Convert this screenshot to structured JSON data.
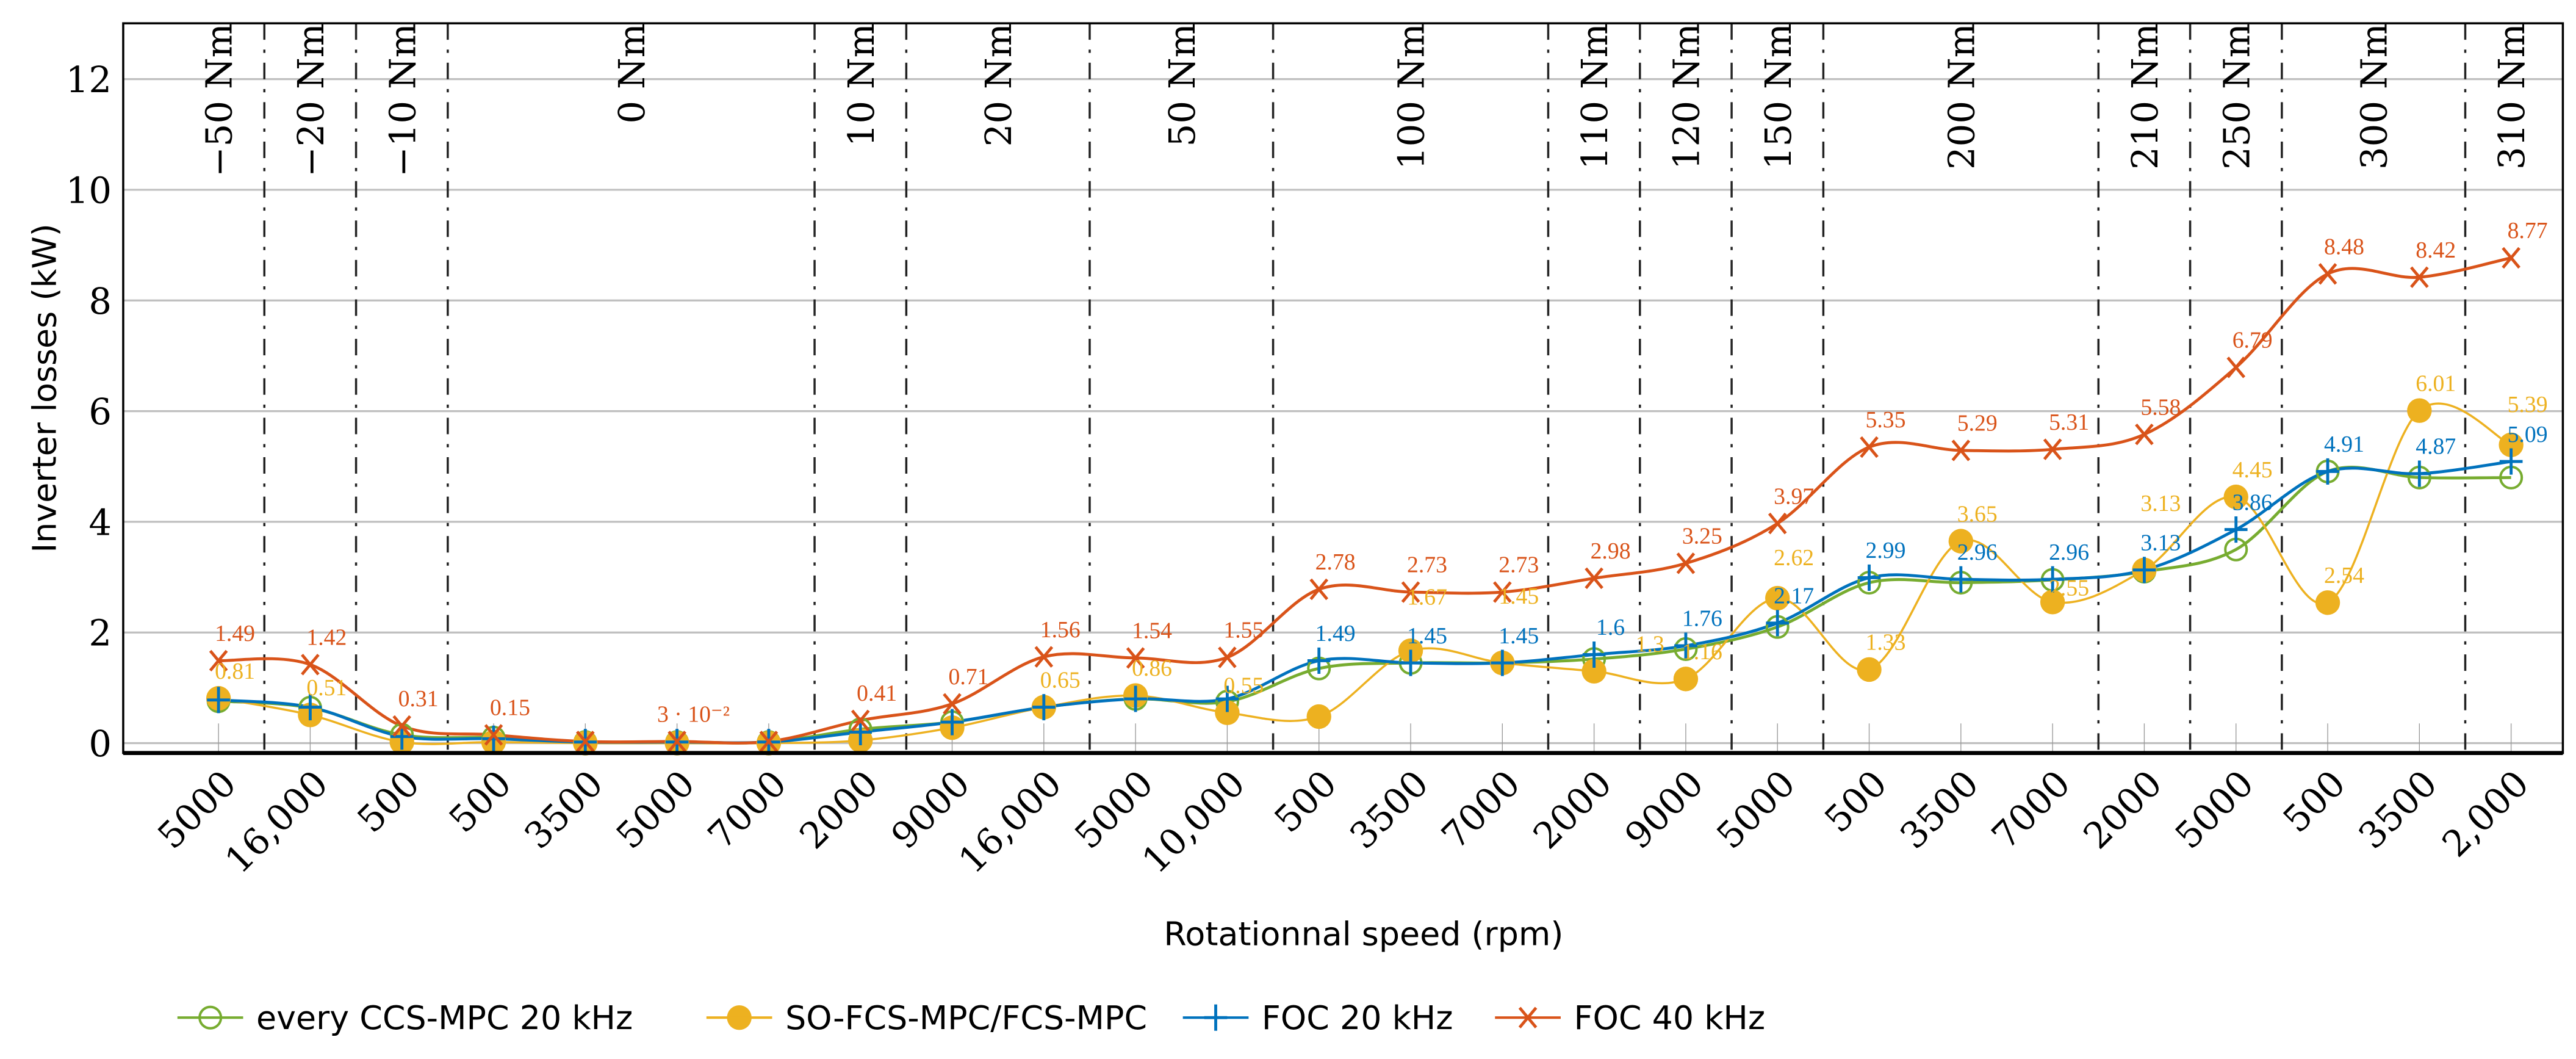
{
  "chart_data": {
    "type": "line",
    "title": "",
    "xlabel": "Rotationnal speed (rpm)",
    "ylabel": "Inverter losses (kW)",
    "ylim": [
      0,
      13
    ],
    "yticks": [
      0,
      2,
      4,
      6,
      8,
      10,
      12
    ],
    "grid": "horizontal",
    "legend_position": "bottom",
    "categories": [
      "5000",
      "16,000",
      "500",
      "500",
      "3500",
      "5000",
      "7000",
      "2000",
      "9000",
      "16,000",
      "5000",
      "10,000",
      "500",
      "3500",
      "7000",
      "2000",
      "9000",
      "5000",
      "500",
      "3500",
      "7000",
      "2000",
      "5000",
      "500",
      "3500",
      "2,000"
    ],
    "groups": [
      {
        "label": "−50 Nm",
        "count": 1
      },
      {
        "label": "−20 Nm",
        "count": 1
      },
      {
        "label": "−10 Nm",
        "count": 1
      },
      {
        "label": "0 Nm",
        "count": 4
      },
      {
        "label": "10 Nm",
        "count": 1
      },
      {
        "label": "20 Nm",
        "count": 2
      },
      {
        "label": "50 Nm",
        "count": 2
      },
      {
        "label": "100 Nm",
        "count": 3
      },
      {
        "label": "110 Nm",
        "count": 1
      },
      {
        "label": "120 Nm",
        "count": 1
      },
      {
        "label": "150 Nm",
        "count": 1
      },
      {
        "label": "200 Nm",
        "count": 3
      },
      {
        "label": "210 Nm",
        "count": 1
      },
      {
        "label": "250 Nm",
        "count": 1
      },
      {
        "label": "300 Nm",
        "count": 2
      },
      {
        "label": "310 Nm",
        "count": 1
      }
    ],
    "series": [
      {
        "name": "every CCS-MPC 20 kHz",
        "color": "#77ac30",
        "marker": "circle-open",
        "values": [
          0.76,
          0.64,
          0.15,
          0.1,
          0.02,
          0.02,
          0.02,
          0.25,
          0.38,
          0.65,
          0.8,
          0.75,
          1.35,
          1.45,
          1.45,
          1.52,
          1.7,
          2.1,
          2.9,
          2.9,
          2.95,
          3.1,
          3.5,
          4.91,
          4.8,
          4.8
        ],
        "labels": [
          null,
          null,
          null,
          null,
          null,
          null,
          null,
          null,
          null,
          null,
          null,
          null,
          null,
          null,
          null,
          null,
          null,
          null,
          null,
          null,
          null,
          null,
          null,
          null,
          null,
          null
        ]
      },
      {
        "name": "SO-FCS-MPC/FCS-MPC",
        "color": "#edb120",
        "marker": "circle-filled",
        "values": [
          0.81,
          0.51,
          0.02,
          0.02,
          0.0,
          0.0,
          0.0,
          0.05,
          0.28,
          0.65,
          0.86,
          0.55,
          0.48,
          1.67,
          1.45,
          1.3,
          1.16,
          2.62,
          1.33,
          3.65,
          2.55,
          3.13,
          4.45,
          2.54,
          6.01,
          5.39
        ],
        "labels": [
          "0.81",
          "0.51",
          null,
          null,
          null,
          null,
          null,
          null,
          null,
          "0.65",
          "0.86",
          "0.55",
          null,
          "1.67",
          "1.45",
          "1.3",
          "1.16",
          "2.62",
          "1.33",
          "3.65",
          "2.55",
          "3.13",
          "4.45",
          "2.54",
          "6.01",
          "5.39"
        ]
      },
      {
        "name": "FOC 20 kHz",
        "color": "#0072bd",
        "marker": "plus",
        "values": [
          0.78,
          0.65,
          0.12,
          0.08,
          0.02,
          0.02,
          0.02,
          0.2,
          0.38,
          0.65,
          0.8,
          0.8,
          1.49,
          1.45,
          1.45,
          1.6,
          1.76,
          2.17,
          2.99,
          2.96,
          2.96,
          3.13,
          3.86,
          4.91,
          4.87,
          5.09
        ],
        "labels": [
          null,
          null,
          null,
          null,
          null,
          null,
          null,
          null,
          null,
          null,
          null,
          null,
          "1.49",
          "1.45",
          "1.45",
          "1.6",
          "1.76",
          "2.17",
          "2.99",
          "2.96",
          "2.96",
          "3.13",
          "3.86",
          "4.91",
          "4.87",
          "5.09"
        ]
      },
      {
        "name": "FOC 40 kHz",
        "color": "#d95319",
        "marker": "cross",
        "values": [
          1.49,
          1.42,
          0.31,
          0.15,
          0.03,
          0.03,
          0.03,
          0.41,
          0.71,
          1.56,
          1.54,
          1.55,
          2.78,
          2.73,
          2.73,
          2.98,
          3.25,
          3.97,
          5.35,
          5.29,
          5.31,
          5.58,
          6.79,
          8.48,
          8.42,
          8.77
        ],
        "labels": [
          "1.49",
          "1.42",
          "0.31",
          "0.15",
          null,
          "3 · 10⁻²",
          null,
          "0.41",
          "0.71",
          "1.56",
          "1.54",
          "1.55",
          "2.78",
          "2.73",
          "2.73",
          "2.98",
          "3.25",
          "3.97",
          "5.35",
          "5.29",
          "5.31",
          "5.58",
          "6.79",
          "8.48",
          "8.42",
          "8.77"
        ]
      }
    ],
    "legend": [
      "every CCS-MPC 20 kHz",
      "SO-FCS-MPC/FCS-MPC",
      "FOC 20 kHz",
      "FOC 40 kHz"
    ]
  }
}
